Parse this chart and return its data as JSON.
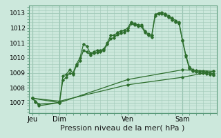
{
  "background_color": "#cce8dc",
  "grid_color": "#a0c8b8",
  "line_color": "#2d6e2d",
  "marker_color": "#2d6e2d",
  "xlabel": "Pression niveau de la mer( hPa )",
  "xlabel_fontsize": 8,
  "yticks": [
    1007,
    1008,
    1009,
    1010,
    1011,
    1012,
    1013
  ],
  "ylim": [
    1006.3,
    1013.5
  ],
  "xtick_labels": [
    "Jeu",
    "Dim",
    "Ven",
    "Sam"
  ],
  "xtick_positions": [
    0,
    4,
    14,
    22
  ],
  "xlim": [
    -0.5,
    27
  ],
  "vline_positions": [
    0,
    4,
    14,
    22
  ],
  "series1_x": [
    0,
    0.5,
    1,
    4,
    4.5,
    5,
    5.5,
    6,
    6.5,
    7,
    7.5,
    8,
    8.5,
    9,
    9.5,
    10,
    10.5,
    11,
    11.5,
    12,
    12.5,
    13,
    13.5,
    14,
    14.5,
    15,
    15.5,
    16,
    16.5,
    17,
    17.5,
    18,
    18.5,
    19,
    19.5,
    20,
    20.5,
    21,
    21.5,
    22,
    22.5,
    23,
    23.5,
    24,
    24.5,
    25,
    25.5,
    26,
    26.5
  ],
  "series1_y": [
    1007.3,
    1007.05,
    1006.8,
    1007.0,
    1008.8,
    1008.9,
    1009.2,
    1009.0,
    1009.6,
    1010.0,
    1010.9,
    1010.8,
    1010.3,
    1010.4,
    1010.5,
    1010.5,
    1010.6,
    1011.0,
    1011.5,
    1011.5,
    1011.7,
    1011.8,
    1011.85,
    1012.0,
    1012.4,
    1012.3,
    1012.2,
    1012.2,
    1011.8,
    1011.6,
    1011.5,
    1012.9,
    1013.0,
    1013.05,
    1012.95,
    1012.8,
    1012.65,
    1012.5,
    1012.4,
    1011.2,
    1010.2,
    1009.4,
    1009.2,
    1009.15,
    1009.1,
    1009.1,
    1009.05,
    1009.0,
    1008.95
  ],
  "series2_x": [
    0,
    0.5,
    1,
    4,
    4.5,
    5,
    5.5,
    6,
    6.5,
    7,
    7.5,
    8,
    8.5,
    9,
    9.5,
    10,
    10.5,
    11,
    11.5,
    12,
    12.5,
    13,
    13.5,
    14,
    14.5,
    15,
    15.5,
    16,
    16.5,
    17,
    17.5,
    18,
    18.5,
    19,
    19.5,
    20,
    20.5,
    21,
    21.5,
    22,
    22.5,
    23,
    23.5,
    24,
    24.5,
    25,
    25.5,
    26,
    26.5
  ],
  "series2_y": [
    1007.3,
    1007.1,
    1006.9,
    1007.0,
    1008.5,
    1008.7,
    1009.0,
    1008.9,
    1009.5,
    1009.8,
    1010.5,
    1010.4,
    1010.2,
    1010.3,
    1010.35,
    1010.4,
    1010.5,
    1010.9,
    1011.3,
    1011.35,
    1011.55,
    1011.65,
    1011.7,
    1011.85,
    1012.3,
    1012.2,
    1012.1,
    1012.1,
    1011.7,
    1011.5,
    1011.4,
    1012.8,
    1012.95,
    1012.95,
    1012.85,
    1012.7,
    1012.55,
    1012.4,
    1012.3,
    1011.15,
    1010.1,
    1009.3,
    1009.1,
    1009.05,
    1009.0,
    1009.0,
    1008.95,
    1008.9,
    1008.85
  ],
  "series3_x": [
    0,
    4,
    14,
    22,
    26.5
  ],
  "series3_y": [
    1007.3,
    1007.1,
    1008.2,
    1008.7,
    1009.1
  ],
  "series4_x": [
    0,
    4,
    14,
    22,
    26.5
  ],
  "series4_y": [
    1007.3,
    1007.0,
    1008.55,
    1009.2,
    1009.1
  ]
}
